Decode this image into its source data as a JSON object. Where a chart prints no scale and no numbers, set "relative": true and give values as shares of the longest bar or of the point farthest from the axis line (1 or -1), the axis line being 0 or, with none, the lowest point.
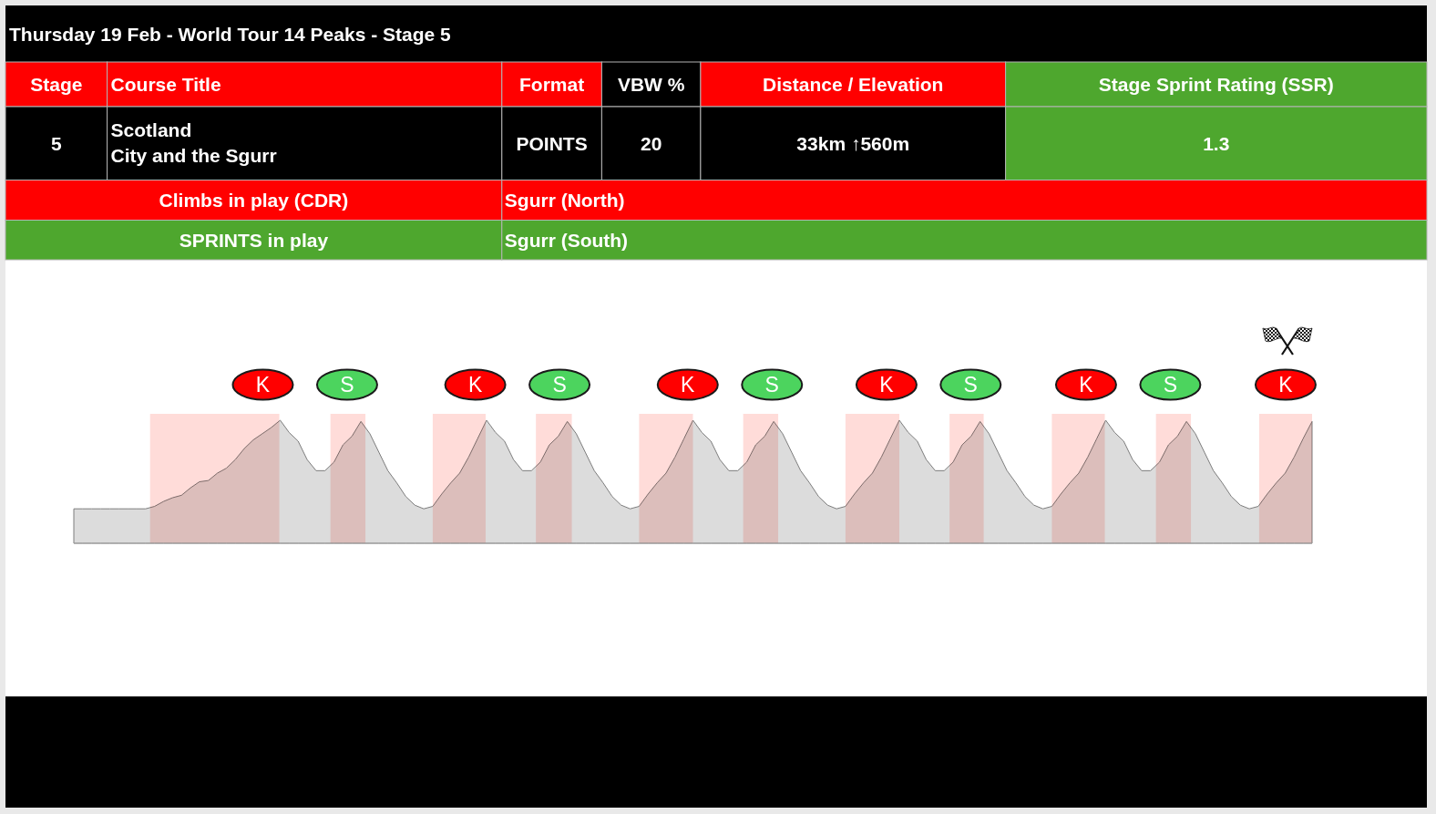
{
  "chart_data": [
    {
      "type": "other",
      "title": "Thursday 19 Feb - World Tour 14 Peaks - Stage 5",
      "annotations": [
        "Stage",
        "Course Title",
        "Format",
        "VBW %",
        "Distance / Elevation",
        "Stage Sprint Rating (SSR)",
        "5",
        "Scotland",
        "City and the Sgurr",
        "POINTS",
        "20",
        "33km ↑560m",
        "1.3",
        "Climbs in play (CDR)",
        "Sgurr (North)",
        "SPRINTS in play",
        "Sgurr (South)"
      ]
    },
    {
      "type": "area",
      "relative": true,
      "color": "#dcdcdc",
      "categories": [
        null,
        null,
        null,
        null,
        null,
        null,
        null,
        null,
        null,
        null,
        null,
        null,
        null,
        null,
        null,
        null,
        null,
        null,
        null,
        null,
        null,
        null,
        null,
        null,
        null,
        null,
        null,
        null,
        null,
        null,
        null,
        null,
        null,
        null,
        null,
        null,
        null,
        null,
        null,
        null,
        null,
        null,
        null,
        null,
        null,
        null,
        null,
        null,
        null,
        null,
        null,
        null,
        null,
        null,
        null,
        null,
        null,
        null,
        null,
        null,
        null,
        null,
        null,
        null,
        null,
        null,
        null,
        null,
        null,
        null,
        null,
        null,
        null,
        null,
        null,
        null,
        null,
        null,
        null,
        null,
        null,
        null,
        null,
        null,
        null,
        null,
        null,
        null,
        null,
        null,
        null,
        null,
        null,
        null,
        null,
        null,
        null,
        null,
        null,
        null,
        null,
        null,
        null,
        null,
        null,
        null,
        null,
        null,
        null,
        null,
        null,
        null,
        null,
        null,
        null,
        null,
        null,
        null,
        null,
        null,
        null,
        null,
        null,
        null,
        null,
        null,
        null,
        null,
        null,
        null,
        null,
        null,
        null,
        null,
        null,
        null,
        null,
        null,
        null
      ],
      "values": [
        0.28,
        0.28,
        0.28,
        0.28,
        0.28,
        0.28,
        0.28,
        0.28,
        0.28,
        0.3,
        0.34,
        0.37,
        0.39,
        0.45,
        0.5,
        0.51,
        0.57,
        0.61,
        0.68,
        0.77,
        0.84,
        0.89,
        0.94,
        1,
        0.9,
        0.83,
        0.68,
        0.59,
        0.59,
        0.66,
        0.8,
        0.87,
        0.99,
        0.89,
        0.74,
        0.59,
        0.49,
        0.38,
        0.31,
        0.28,
        0.3,
        0.4,
        0.49,
        0.57,
        0.7,
        0.85,
        1,
        0.9,
        0.83,
        0.68,
        0.59,
        0.59,
        0.66,
        0.8,
        0.87,
        0.99,
        0.89,
        0.74,
        0.59,
        0.49,
        0.38,
        0.31,
        0.28,
        0.3,
        0.4,
        0.49,
        0.57,
        0.7,
        0.85,
        1,
        0.9,
        0.83,
        0.68,
        0.59,
        0.59,
        0.66,
        0.8,
        0.87,
        0.99,
        0.89,
        0.74,
        0.59,
        0.49,
        0.38,
        0.31,
        0.28,
        0.3,
        0.4,
        0.49,
        0.57,
        0.7,
        0.85,
        1,
        0.9,
        0.83,
        0.68,
        0.59,
        0.59,
        0.66,
        0.8,
        0.87,
        0.99,
        0.89,
        0.74,
        0.59,
        0.49,
        0.38,
        0.31,
        0.28,
        0.3,
        0.4,
        0.49,
        0.57,
        0.7,
        0.85,
        1,
        0.9,
        0.83,
        0.68,
        0.59,
        0.59,
        0.66,
        0.8,
        0.87,
        0.99,
        0.89,
        0.74,
        0.59,
        0.49,
        0.38,
        0.31,
        0.28,
        0.3,
        0.4,
        0.49,
        0.57,
        0.7,
        0.85,
        0.99
      ],
      "annotations": [
        "K",
        "S",
        "K",
        "S",
        "K",
        "S",
        "K",
        "S",
        "K",
        "S",
        "K"
      ]
    }
  ]
}
